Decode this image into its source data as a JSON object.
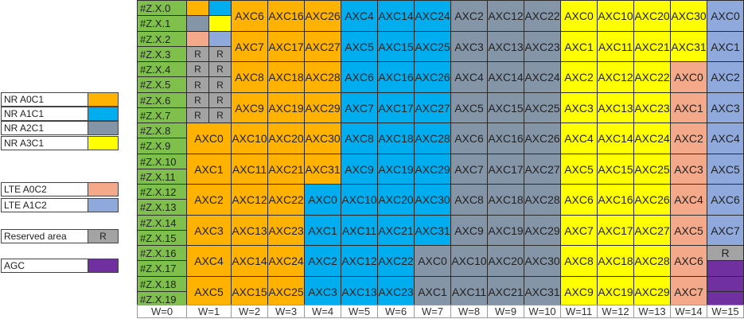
{
  "colors": {
    "green": "#7fbf4b",
    "orange": "#ffb300",
    "blue": "#00aef0",
    "gray": "#8595a8",
    "yellow": "#ffff00",
    "salmon": "#f4aa8a",
    "lteblue": "#8fa9dc",
    "reserved": "#a3a3a3",
    "purple": "#7030a0",
    "white": "#ffffff"
  },
  "legend": [
    {
      "label": "NR A0C1",
      "color": "orange",
      "swatch_text": ""
    },
    {
      "label": "NR A1C1",
      "color": "blue",
      "swatch_text": ""
    },
    {
      "label": "NR A2C1",
      "color": "gray",
      "swatch_text": ""
    },
    {
      "label": "NR A3C1",
      "color": "yellow",
      "swatch_text": ""
    },
    {
      "label": "LTE A0C2",
      "color": "salmon",
      "swatch_text": ""
    },
    {
      "label": "LTE A1C2",
      "color": "lteblue",
      "swatch_text": ""
    },
    {
      "label": "Reserved area",
      "color": "reserved",
      "swatch_text": "R"
    },
    {
      "label": "AGC",
      "color": "purple",
      "swatch_text": ""
    }
  ],
  "row_labels": [
    "#Z.X.0",
    "#Z.X.1",
    "#Z.X.2",
    "#Z.X.3",
    "#Z.X.4",
    "#Z.X.5",
    "#Z.X.6",
    "#Z.X.7",
    "#Z.X.8",
    "#Z.X.9",
    "#Z.X.10",
    "#Z.X.11",
    "#Z.X.12",
    "#Z.X.13",
    "#Z.X.14",
    "#Z.X.15",
    "#Z.X.16",
    "#Z.X.17",
    "#Z.X.18",
    "#Z.X.19"
  ],
  "column_labels": [
    "W=0",
    "W=1",
    "W=2",
    "W=3",
    "W=4",
    "W=5",
    "W=6",
    "W=7",
    "W=8",
    "W=9",
    "W=10",
    "W=11",
    "W=12",
    "W=13",
    "W=14",
    "W=15"
  ],
  "cells": [
    {
      "col": 1,
      "row": 0,
      "rspan": 1,
      "half": "L",
      "color": "orange",
      "text": ""
    },
    {
      "col": 1,
      "row": 0,
      "rspan": 1,
      "half": "R",
      "color": "blue",
      "text": ""
    },
    {
      "col": 1,
      "row": 1,
      "rspan": 1,
      "half": "L",
      "color": "gray",
      "text": ""
    },
    {
      "col": 1,
      "row": 1,
      "rspan": 1,
      "half": "R",
      "color": "yellow",
      "text": ""
    },
    {
      "col": 1,
      "row": 2,
      "rspan": 1,
      "half": "L",
      "color": "salmon",
      "text": ""
    },
    {
      "col": 1,
      "row": 2,
      "rspan": 1,
      "half": "R",
      "color": "lteblue",
      "text": ""
    },
    {
      "col": 1,
      "row": 3,
      "rspan": 1,
      "half": "L",
      "color": "reserved",
      "text": "R"
    },
    {
      "col": 1,
      "row": 3,
      "rspan": 1,
      "half": "R",
      "color": "reserved",
      "text": "R"
    },
    {
      "col": 1,
      "row": 4,
      "rspan": 1,
      "half": "L",
      "color": "reserved",
      "text": "R"
    },
    {
      "col": 1,
      "row": 4,
      "rspan": 1,
      "half": "R",
      "color": "reserved",
      "text": "R"
    },
    {
      "col": 1,
      "row": 5,
      "rspan": 1,
      "half": "L",
      "color": "reserved",
      "text": "R"
    },
    {
      "col": 1,
      "row": 5,
      "rspan": 1,
      "half": "R",
      "color": "reserved",
      "text": "R"
    },
    {
      "col": 1,
      "row": 6,
      "rspan": 1,
      "half": "L",
      "color": "reserved",
      "text": "R"
    },
    {
      "col": 1,
      "row": 6,
      "rspan": 1,
      "half": "R",
      "color": "reserved",
      "text": "R"
    },
    {
      "col": 1,
      "row": 7,
      "rspan": 1,
      "half": "L",
      "color": "reserved",
      "text": "R"
    },
    {
      "col": 1,
      "row": 7,
      "rspan": 1,
      "half": "R",
      "color": "reserved",
      "text": "R"
    },
    {
      "col": 2,
      "row": 0,
      "rspan": 2,
      "color": "orange",
      "text": "AXC6"
    },
    {
      "col": 2,
      "row": 2,
      "rspan": 2,
      "color": "orange",
      "text": "AXC7"
    },
    {
      "col": 2,
      "row": 4,
      "rspan": 2,
      "color": "orange",
      "text": "AXC8"
    },
    {
      "col": 2,
      "row": 6,
      "rspan": 2,
      "color": "orange",
      "text": "AXC9"
    },
    {
      "col": 3,
      "row": 0,
      "rspan": 2,
      "color": "orange",
      "text": "AXC16"
    },
    {
      "col": 3,
      "row": 2,
      "rspan": 2,
      "color": "orange",
      "text": "AXC17"
    },
    {
      "col": 3,
      "row": 4,
      "rspan": 2,
      "color": "orange",
      "text": "AXC18"
    },
    {
      "col": 3,
      "row": 6,
      "rspan": 2,
      "color": "orange",
      "text": "AXC19"
    },
    {
      "col": 4,
      "row": 0,
      "rspan": 2,
      "color": "orange",
      "text": "AXC26"
    },
    {
      "col": 4,
      "row": 2,
      "rspan": 2,
      "color": "orange",
      "text": "AXC27"
    },
    {
      "col": 4,
      "row": 4,
      "rspan": 2,
      "color": "orange",
      "text": "AXC28"
    },
    {
      "col": 4,
      "row": 6,
      "rspan": 2,
      "color": "orange",
      "text": "AXC29"
    },
    {
      "col": 5,
      "row": 0,
      "rspan": 2,
      "color": "blue",
      "text": "AXC4"
    },
    {
      "col": 5,
      "row": 2,
      "rspan": 2,
      "color": "blue",
      "text": "AXC5"
    },
    {
      "col": 5,
      "row": 4,
      "rspan": 2,
      "color": "blue",
      "text": "AXC6"
    },
    {
      "col": 5,
      "row": 6,
      "rspan": 2,
      "color": "blue",
      "text": "AXC7"
    },
    {
      "col": 6,
      "row": 0,
      "rspan": 2,
      "color": "blue",
      "text": "AXC14"
    },
    {
      "col": 6,
      "row": 2,
      "rspan": 2,
      "color": "blue",
      "text": "AXC15"
    },
    {
      "col": 6,
      "row": 4,
      "rspan": 2,
      "color": "blue",
      "text": "AXC16"
    },
    {
      "col": 6,
      "row": 6,
      "rspan": 2,
      "color": "blue",
      "text": "AXC17"
    },
    {
      "col": 7,
      "row": 0,
      "rspan": 2,
      "color": "blue",
      "text": "AXC24"
    },
    {
      "col": 7,
      "row": 2,
      "rspan": 2,
      "color": "blue",
      "text": "AXC25"
    },
    {
      "col": 7,
      "row": 4,
      "rspan": 2,
      "color": "blue",
      "text": "AXC26"
    },
    {
      "col": 7,
      "row": 6,
      "rspan": 2,
      "color": "blue",
      "text": "AXC27"
    },
    {
      "col": 8,
      "row": 0,
      "rspan": 2,
      "color": "gray",
      "text": "AXC2"
    },
    {
      "col": 8,
      "row": 2,
      "rspan": 2,
      "color": "gray",
      "text": "AXC3"
    },
    {
      "col": 8,
      "row": 4,
      "rspan": 2,
      "color": "gray",
      "text": "AXC4"
    },
    {
      "col": 8,
      "row": 6,
      "rspan": 2,
      "color": "gray",
      "text": "AXC5"
    },
    {
      "col": 9,
      "row": 0,
      "rspan": 2,
      "color": "gray",
      "text": "AXC12"
    },
    {
      "col": 9,
      "row": 2,
      "rspan": 2,
      "color": "gray",
      "text": "AXC13"
    },
    {
      "col": 9,
      "row": 4,
      "rspan": 2,
      "color": "gray",
      "text": "AXC14"
    },
    {
      "col": 9,
      "row": 6,
      "rspan": 2,
      "color": "gray",
      "text": "AXC15"
    },
    {
      "col": 10,
      "row": 0,
      "rspan": 2,
      "color": "gray",
      "text": "AXC22"
    },
    {
      "col": 10,
      "row": 2,
      "rspan": 2,
      "color": "gray",
      "text": "AXC23"
    },
    {
      "col": 10,
      "row": 4,
      "rspan": 2,
      "color": "gray",
      "text": "AXC24"
    },
    {
      "col": 10,
      "row": 6,
      "rspan": 2,
      "color": "gray",
      "text": "AXC25"
    },
    {
      "col": 11,
      "row": 0,
      "rspan": 2,
      "color": "yellow",
      "text": "AXC0"
    },
    {
      "col": 11,
      "row": 2,
      "rspan": 2,
      "color": "yellow",
      "text": "AXC1"
    },
    {
      "col": 11,
      "row": 4,
      "rspan": 2,
      "color": "yellow",
      "text": "AXC2"
    },
    {
      "col": 11,
      "row": 6,
      "rspan": 2,
      "color": "yellow",
      "text": "AXC3"
    },
    {
      "col": 12,
      "row": 0,
      "rspan": 2,
      "color": "yellow",
      "text": "AXC10"
    },
    {
      "col": 12,
      "row": 2,
      "rspan": 2,
      "color": "yellow",
      "text": "AXC11"
    },
    {
      "col": 12,
      "row": 4,
      "rspan": 2,
      "color": "yellow",
      "text": "AXC12"
    },
    {
      "col": 12,
      "row": 6,
      "rspan": 2,
      "color": "yellow",
      "text": "AXC13"
    },
    {
      "col": 13,
      "row": 0,
      "rspan": 2,
      "color": "yellow",
      "text": "AXC20"
    },
    {
      "col": 13,
      "row": 2,
      "rspan": 2,
      "color": "yellow",
      "text": "AXC21"
    },
    {
      "col": 13,
      "row": 4,
      "rspan": 2,
      "color": "yellow",
      "text": "AXC22"
    },
    {
      "col": 13,
      "row": 6,
      "rspan": 2,
      "color": "yellow",
      "text": "AXC23"
    },
    {
      "col": 14,
      "row": 0,
      "rspan": 2,
      "color": "yellow",
      "text": "AXC30"
    },
    {
      "col": 14,
      "row": 2,
      "rspan": 2,
      "color": "yellow",
      "text": "AXC31"
    },
    {
      "col": 14,
      "row": 4,
      "rspan": 2,
      "color": "salmon",
      "text": "AXC0"
    },
    {
      "col": 14,
      "row": 6,
      "rspan": 2,
      "color": "salmon",
      "text": "AXC1"
    },
    {
      "col": 15,
      "row": 0,
      "rspan": 2,
      "color": "lteblue",
      "text": "AXC0"
    },
    {
      "col": 15,
      "row": 2,
      "rspan": 2,
      "color": "lteblue",
      "text": "AXC1"
    },
    {
      "col": 15,
      "row": 4,
      "rspan": 2,
      "color": "lteblue",
      "text": "AXC2"
    },
    {
      "col": 15,
      "row": 6,
      "rspan": 2,
      "color": "lteblue",
      "text": "AXC3"
    },
    {
      "col": 1,
      "row": 8,
      "rspan": 2,
      "color": "orange",
      "text": "AXC0"
    },
    {
      "col": 1,
      "row": 10,
      "rspan": 2,
      "color": "orange",
      "text": "AXC1"
    },
    {
      "col": 1,
      "row": 12,
      "rspan": 2,
      "color": "orange",
      "text": "AXC2"
    },
    {
      "col": 1,
      "row": 14,
      "rspan": 2,
      "color": "orange",
      "text": "AXC3"
    },
    {
      "col": 1,
      "row": 16,
      "rspan": 2,
      "color": "orange",
      "text": "AXC4"
    },
    {
      "col": 1,
      "row": 18,
      "rspan": 2,
      "color": "orange",
      "text": "AXC5"
    },
    {
      "col": 2,
      "row": 8,
      "rspan": 2,
      "color": "orange",
      "text": "AXC10"
    },
    {
      "col": 2,
      "row": 10,
      "rspan": 2,
      "color": "orange",
      "text": "AXC11"
    },
    {
      "col": 2,
      "row": 12,
      "rspan": 2,
      "color": "orange",
      "text": "AXC12"
    },
    {
      "col": 2,
      "row": 14,
      "rspan": 2,
      "color": "orange",
      "text": "AXC13"
    },
    {
      "col": 2,
      "row": 16,
      "rspan": 2,
      "color": "orange",
      "text": "AXC14"
    },
    {
      "col": 2,
      "row": 18,
      "rspan": 2,
      "color": "orange",
      "text": "AXC15"
    },
    {
      "col": 3,
      "row": 8,
      "rspan": 2,
      "color": "orange",
      "text": "AXC20"
    },
    {
      "col": 3,
      "row": 10,
      "rspan": 2,
      "color": "orange",
      "text": "AXC21"
    },
    {
      "col": 3,
      "row": 12,
      "rspan": 2,
      "color": "orange",
      "text": "AXC22"
    },
    {
      "col": 3,
      "row": 14,
      "rspan": 2,
      "color": "orange",
      "text": "AXC23"
    },
    {
      "col": 3,
      "row": 16,
      "rspan": 2,
      "color": "orange",
      "text": "AXC24"
    },
    {
      "col": 3,
      "row": 18,
      "rspan": 2,
      "color": "orange",
      "text": "AXC25"
    },
    {
      "col": 4,
      "row": 8,
      "rspan": 2,
      "color": "orange",
      "text": "AXC30"
    },
    {
      "col": 4,
      "row": 10,
      "rspan": 2,
      "color": "orange",
      "text": "AXC31"
    },
    {
      "col": 4,
      "row": 12,
      "rspan": 2,
      "color": "blue",
      "text": "AXC0"
    },
    {
      "col": 4,
      "row": 14,
      "rspan": 2,
      "color": "blue",
      "text": "AXC1"
    },
    {
      "col": 4,
      "row": 16,
      "rspan": 2,
      "color": "blue",
      "text": "AXC2"
    },
    {
      "col": 4,
      "row": 18,
      "rspan": 2,
      "color": "blue",
      "text": "AXC3"
    },
    {
      "col": 5,
      "row": 8,
      "rspan": 2,
      "color": "blue",
      "text": "AXC8"
    },
    {
      "col": 5,
      "row": 10,
      "rspan": 2,
      "color": "blue",
      "text": "AXC9"
    },
    {
      "col": 5,
      "row": 12,
      "rspan": 2,
      "color": "blue",
      "text": "AXC10"
    },
    {
      "col": 5,
      "row": 14,
      "rspan": 2,
      "color": "blue",
      "text": "AXC11"
    },
    {
      "col": 5,
      "row": 16,
      "rspan": 2,
      "color": "blue",
      "text": "AXC12"
    },
    {
      "col": 5,
      "row": 18,
      "rspan": 2,
      "color": "blue",
      "text": "AXC13"
    },
    {
      "col": 6,
      "row": 8,
      "rspan": 2,
      "color": "blue",
      "text": "AXC18"
    },
    {
      "col": 6,
      "row": 10,
      "rspan": 2,
      "color": "blue",
      "text": "AXC19"
    },
    {
      "col": 6,
      "row": 12,
      "rspan": 2,
      "color": "blue",
      "text": "AXC20"
    },
    {
      "col": 6,
      "row": 14,
      "rspan": 2,
      "color": "blue",
      "text": "AXC21"
    },
    {
      "col": 6,
      "row": 16,
      "rspan": 2,
      "color": "blue",
      "text": "AXC22"
    },
    {
      "col": 6,
      "row": 18,
      "rspan": 2,
      "color": "blue",
      "text": "AXC23"
    },
    {
      "col": 7,
      "row": 8,
      "rspan": 2,
      "color": "blue",
      "text": "AXC28"
    },
    {
      "col": 7,
      "row": 10,
      "rspan": 2,
      "color": "blue",
      "text": "AXC29"
    },
    {
      "col": 7,
      "row": 12,
      "rspan": 2,
      "color": "blue",
      "text": "AXC30"
    },
    {
      "col": 7,
      "row": 14,
      "rspan": 2,
      "color": "blue",
      "text": "AXC31"
    },
    {
      "col": 7,
      "row": 16,
      "rspan": 2,
      "color": "gray",
      "text": "AXC0"
    },
    {
      "col": 7,
      "row": 18,
      "rspan": 2,
      "color": "gray",
      "text": "AXC1"
    },
    {
      "col": 8,
      "row": 8,
      "rspan": 2,
      "color": "gray",
      "text": "AXC6"
    },
    {
      "col": 8,
      "row": 10,
      "rspan": 2,
      "color": "gray",
      "text": "AXC7"
    },
    {
      "col": 8,
      "row": 12,
      "rspan": 2,
      "color": "gray",
      "text": "AXC8"
    },
    {
      "col": 8,
      "row": 14,
      "rspan": 2,
      "color": "gray",
      "text": "AXC9"
    },
    {
      "col": 8,
      "row": 16,
      "rspan": 2,
      "color": "gray",
      "text": "AXC10"
    },
    {
      "col": 8,
      "row": 18,
      "rspan": 2,
      "color": "gray",
      "text": "AXC11"
    },
    {
      "col": 9,
      "row": 8,
      "rspan": 2,
      "color": "gray",
      "text": "AXC16"
    },
    {
      "col": 9,
      "row": 10,
      "rspan": 2,
      "color": "gray",
      "text": "AXC17"
    },
    {
      "col": 9,
      "row": 12,
      "rspan": 2,
      "color": "gray",
      "text": "AXC18"
    },
    {
      "col": 9,
      "row": 14,
      "rspan": 2,
      "color": "gray",
      "text": "AXC19"
    },
    {
      "col": 9,
      "row": 16,
      "rspan": 2,
      "color": "gray",
      "text": "AXC20"
    },
    {
      "col": 9,
      "row": 18,
      "rspan": 2,
      "color": "gray",
      "text": "AXC21"
    },
    {
      "col": 10,
      "row": 8,
      "rspan": 2,
      "color": "gray",
      "text": "AXC26"
    },
    {
      "col": 10,
      "row": 10,
      "rspan": 2,
      "color": "gray",
      "text": "AXC27"
    },
    {
      "col": 10,
      "row": 12,
      "rspan": 2,
      "color": "gray",
      "text": "AXC28"
    },
    {
      "col": 10,
      "row": 14,
      "rspan": 2,
      "color": "gray",
      "text": "AXC29"
    },
    {
      "col": 10,
      "row": 16,
      "rspan": 2,
      "color": "gray",
      "text": "AXC30"
    },
    {
      "col": 10,
      "row": 18,
      "rspan": 2,
      "color": "gray",
      "text": "AXC31"
    },
    {
      "col": 11,
      "row": 8,
      "rspan": 2,
      "color": "yellow",
      "text": "AXC4"
    },
    {
      "col": 11,
      "row": 10,
      "rspan": 2,
      "color": "yellow",
      "text": "AXC5"
    },
    {
      "col": 11,
      "row": 12,
      "rspan": 2,
      "color": "yellow",
      "text": "AXC6"
    },
    {
      "col": 11,
      "row": 14,
      "rspan": 2,
      "color": "yellow",
      "text": "AXC7"
    },
    {
      "col": 11,
      "row": 16,
      "rspan": 2,
      "color": "yellow",
      "text": "AXC8"
    },
    {
      "col": 11,
      "row": 18,
      "rspan": 2,
      "color": "yellow",
      "text": "AXC9"
    },
    {
      "col": 12,
      "row": 8,
      "rspan": 2,
      "color": "yellow",
      "text": "AXC14"
    },
    {
      "col": 12,
      "row": 10,
      "rspan": 2,
      "color": "yellow",
      "text": "AXC15"
    },
    {
      "col": 12,
      "row": 12,
      "rspan": 2,
      "color": "yellow",
      "text": "AXC16"
    },
    {
      "col": 12,
      "row": 14,
      "rspan": 2,
      "color": "yellow",
      "text": "AXC17"
    },
    {
      "col": 12,
      "row": 16,
      "rspan": 2,
      "color": "yellow",
      "text": "AXC18"
    },
    {
      "col": 12,
      "row": 18,
      "rspan": 2,
      "color": "yellow",
      "text": "AXC19"
    },
    {
      "col": 13,
      "row": 8,
      "rspan": 2,
      "color": "yellow",
      "text": "AXC24"
    },
    {
      "col": 13,
      "row": 10,
      "rspan": 2,
      "color": "yellow",
      "text": "AXC25"
    },
    {
      "col": 13,
      "row": 12,
      "rspan": 2,
      "color": "yellow",
      "text": "AXC26"
    },
    {
      "col": 13,
      "row": 14,
      "rspan": 2,
      "color": "yellow",
      "text": "AXC27"
    },
    {
      "col": 13,
      "row": 16,
      "rspan": 2,
      "color": "yellow",
      "text": "AXC28"
    },
    {
      "col": 13,
      "row": 18,
      "rspan": 2,
      "color": "yellow",
      "text": "AXC29"
    },
    {
      "col": 14,
      "row": 8,
      "rspan": 2,
      "color": "salmon",
      "text": "AXC2"
    },
    {
      "col": 14,
      "row": 10,
      "rspan": 2,
      "color": "salmon",
      "text": "AXC3"
    },
    {
      "col": 14,
      "row": 12,
      "rspan": 2,
      "color": "salmon",
      "text": "AXC4"
    },
    {
      "col": 14,
      "row": 14,
      "rspan": 2,
      "color": "salmon",
      "text": "AXC5"
    },
    {
      "col": 14,
      "row": 16,
      "rspan": 2,
      "color": "salmon",
      "text": "AXC6"
    },
    {
      "col": 14,
      "row": 18,
      "rspan": 2,
      "color": "salmon",
      "text": "AXC7"
    },
    {
      "col": 15,
      "row": 8,
      "rspan": 2,
      "color": "lteblue",
      "text": "AXC4"
    },
    {
      "col": 15,
      "row": 10,
      "rspan": 2,
      "color": "lteblue",
      "text": "AXC5"
    },
    {
      "col": 15,
      "row": 12,
      "rspan": 2,
      "color": "lteblue",
      "text": "AXC6"
    },
    {
      "col": 15,
      "row": 14,
      "rspan": 2,
      "color": "lteblue",
      "text": "AXC7"
    },
    {
      "col": 15,
      "row": 16,
      "rspan": 1,
      "color": "reserved",
      "text": "R"
    },
    {
      "col": 15,
      "row": 17,
      "rspan": 1,
      "color": "purple",
      "text": ""
    },
    {
      "col": 15,
      "row": 18,
      "rspan": 1,
      "color": "purple",
      "text": ""
    },
    {
      "col": 15,
      "row": 19,
      "rspan": 1,
      "color": "purple",
      "text": ""
    }
  ]
}
